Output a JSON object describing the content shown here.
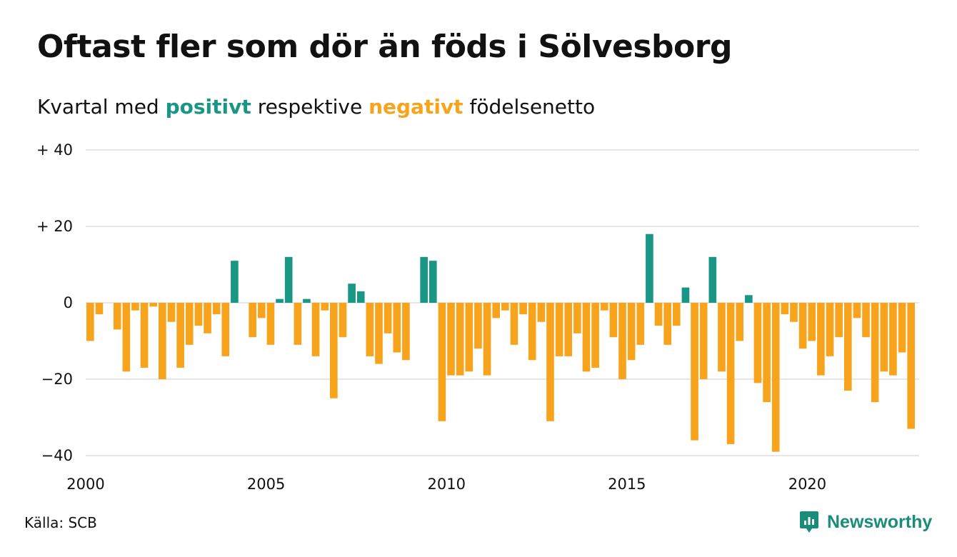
{
  "title": "Oftast fler som dör än föds i Sölvesborg",
  "subtitle": {
    "prefix": "Kvartal med",
    "positive_word": "positivt",
    "middle": "respektive",
    "negative_word": "negativt",
    "suffix": "födelsenetto"
  },
  "source": "Källa: SCB",
  "brand": "Newsworthy",
  "colors": {
    "positive": "#1a9685",
    "negative": "#f7a31c",
    "grid": "#dddddd",
    "text": "#111111"
  },
  "chart_data": {
    "type": "bar",
    "x_tick_labels": [
      "2000",
      "2005",
      "2010",
      "2015",
      "2020"
    ],
    "y_tick_labels": [
      "+ 40",
      "+ 20",
      "0",
      "−20",
      "−40"
    ],
    "y_ticks": [
      40,
      20,
      0,
      -20,
      -40
    ],
    "ylim": [
      -40,
      40
    ],
    "x_start_year": 2000,
    "x_end_year": 2023,
    "grid": true,
    "categories": [
      "2000 Q1",
      "2000 Q2",
      "2000 Q3",
      "2000 Q4",
      "2001 Q1",
      "2001 Q2",
      "2001 Q3",
      "2001 Q4",
      "2002 Q1",
      "2002 Q2",
      "2002 Q3",
      "2002 Q4",
      "2003 Q1",
      "2003 Q2",
      "2003 Q3",
      "2003 Q4",
      "2004 Q1",
      "2004 Q2",
      "2004 Q3",
      "2004 Q4",
      "2005 Q1",
      "2005 Q2",
      "2005 Q3",
      "2005 Q4",
      "2006 Q1",
      "2006 Q2",
      "2006 Q3",
      "2006 Q4",
      "2007 Q1",
      "2007 Q2",
      "2007 Q3",
      "2007 Q4",
      "2008 Q1",
      "2008 Q2",
      "2008 Q3",
      "2008 Q4",
      "2009 Q1",
      "2009 Q2",
      "2009 Q3",
      "2009 Q4",
      "2010 Q1",
      "2010 Q2",
      "2010 Q3",
      "2010 Q4",
      "2011 Q1",
      "2011 Q2",
      "2011 Q3",
      "2011 Q4",
      "2012 Q1",
      "2012 Q2",
      "2012 Q3",
      "2012 Q4",
      "2013 Q1",
      "2013 Q2",
      "2013 Q3",
      "2013 Q4",
      "2014 Q1",
      "2014 Q2",
      "2014 Q3",
      "2014 Q4",
      "2015 Q1",
      "2015 Q2",
      "2015 Q3",
      "2015 Q4",
      "2016 Q1",
      "2016 Q2",
      "2016 Q3",
      "2016 Q4",
      "2017 Q1",
      "2017 Q2",
      "2017 Q3",
      "2017 Q4",
      "2018 Q1",
      "2018 Q2",
      "2018 Q3",
      "2018 Q4",
      "2019 Q1",
      "2019 Q2",
      "2019 Q3",
      "2019 Q4",
      "2020 Q1",
      "2020 Q2",
      "2020 Q3",
      "2020 Q4",
      "2021 Q1",
      "2021 Q2",
      "2021 Q3",
      "2021 Q4",
      "2022 Q1",
      "2022 Q2",
      "2022 Q3",
      "2022 Q4"
    ],
    "values": [
      -10,
      -3,
      0,
      -7,
      -18,
      -2,
      -17,
      -1,
      -20,
      -5,
      -17,
      -11,
      -6,
      -8,
      -3,
      -14,
      11,
      0,
      -9,
      -4,
      -11,
      1,
      12,
      -11,
      1,
      -14,
      -2,
      -25,
      -9,
      5,
      3,
      -14,
      -16,
      -8,
      -13,
      -15,
      0,
      12,
      11,
      -31,
      -19,
      -19,
      -18,
      -12,
      -19,
      -4,
      -2,
      -11,
      -3,
      -15,
      -5,
      -31,
      -14,
      -14,
      -8,
      -18,
      -17,
      -2,
      -9,
      -20,
      -15,
      -11,
      18,
      -6,
      -11,
      -6,
      4,
      -36,
      -20,
      12,
      -18,
      -37,
      -10,
      2,
      -21,
      -26,
      -39,
      -3,
      -5,
      -12,
      -10,
      -19,
      -14,
      -9,
      -23,
      -4,
      -9,
      -26,
      -18,
      -19,
      -13,
      -33
    ]
  }
}
